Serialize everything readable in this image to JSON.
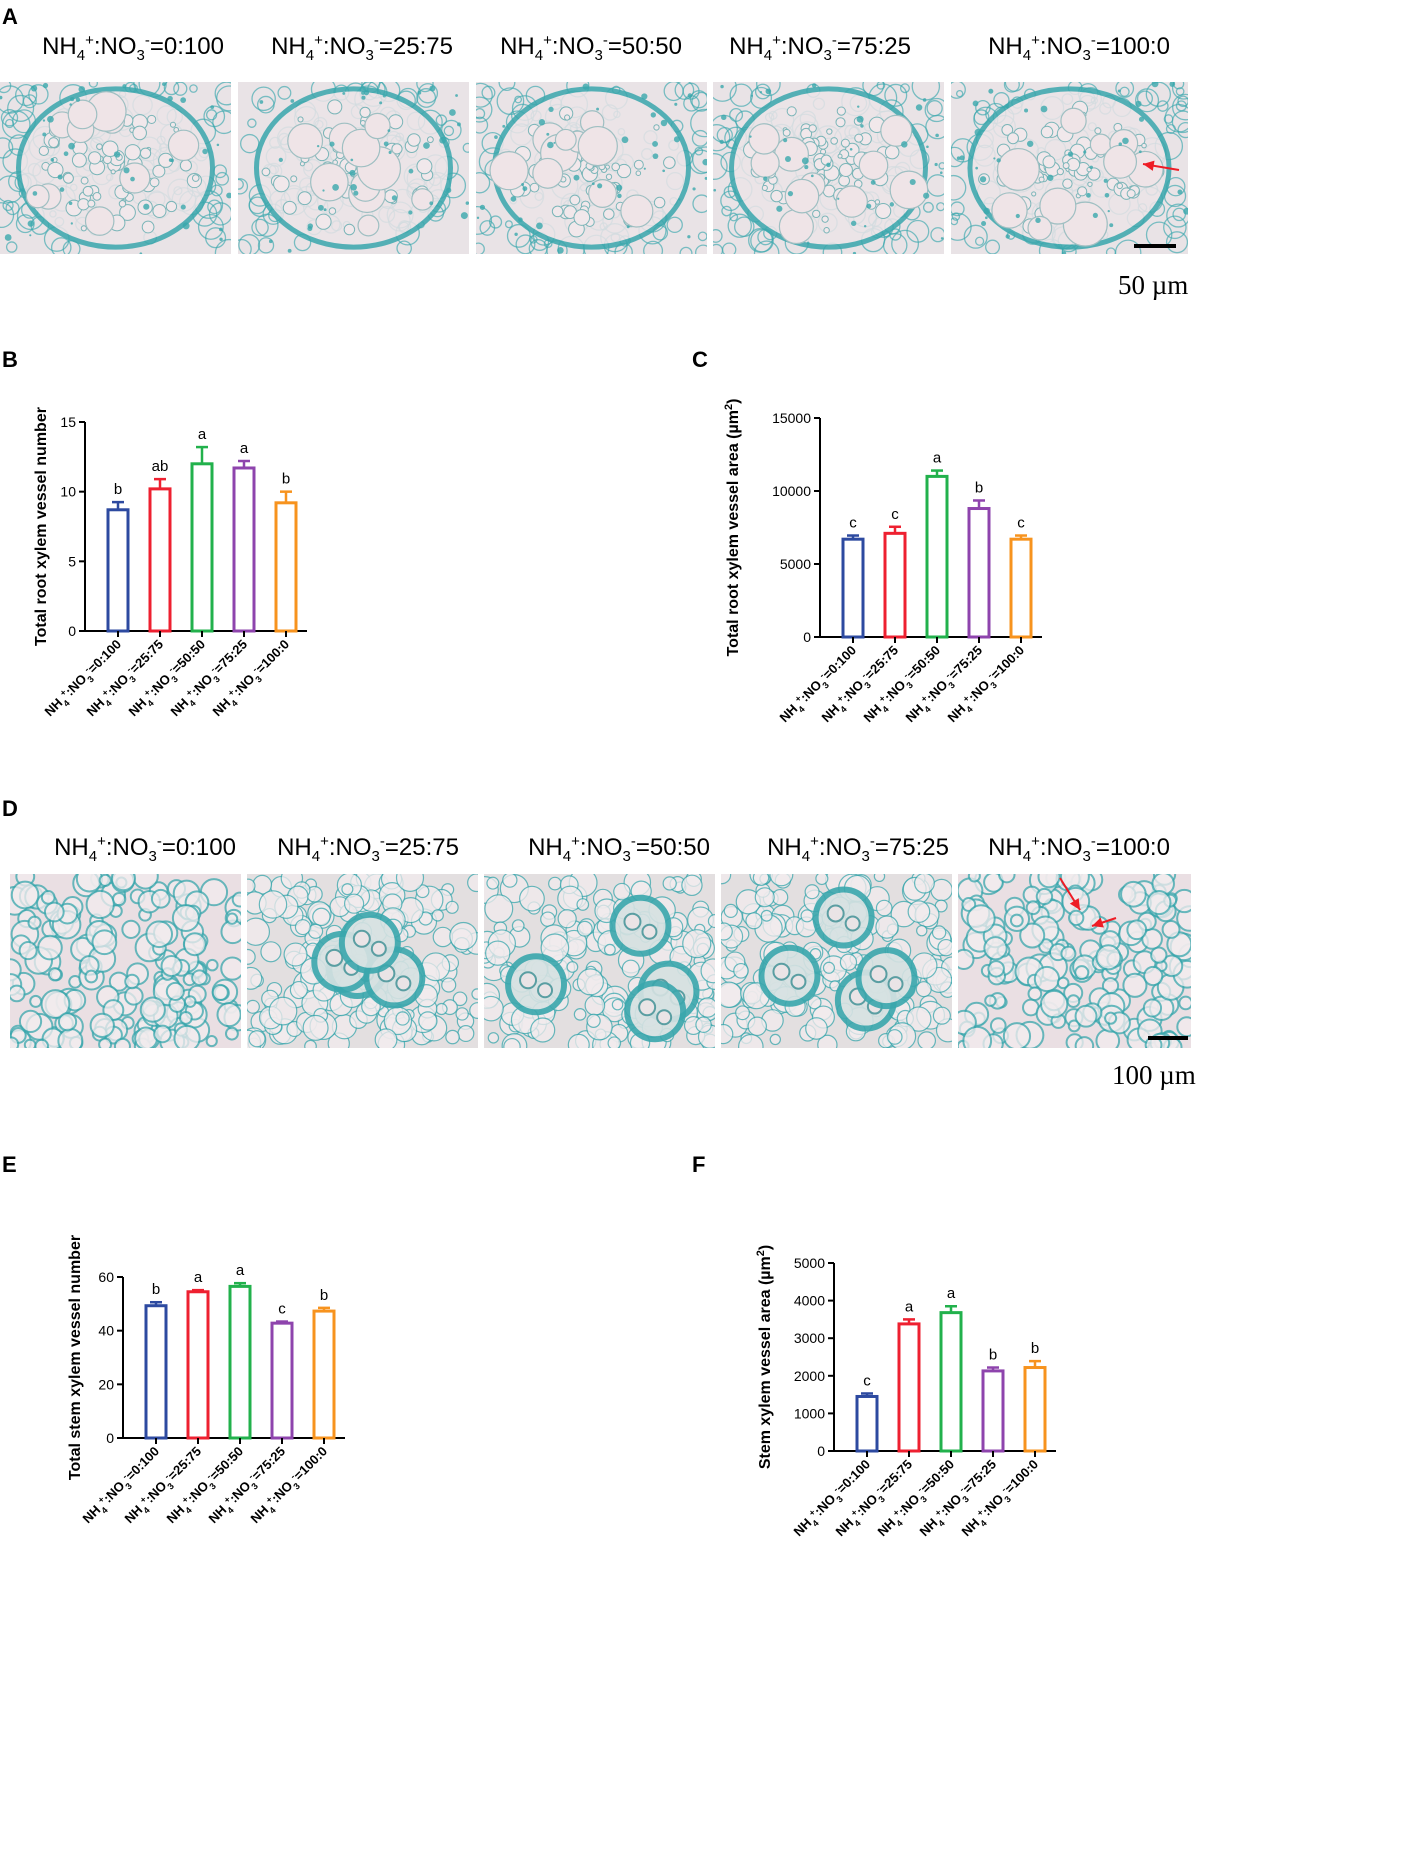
{
  "panel_a": {
    "letter": "A",
    "labels": [
      "0:100",
      "25:75",
      "50:50",
      "75:25",
      "100:0"
    ],
    "scale_text": "50 µm"
  },
  "panel_d": {
    "letter": "D",
    "labels": [
      "0:100",
      "25:75",
      "50:50",
      "75:25",
      "100:0"
    ],
    "scale_text": "100 µm"
  },
  "colors": {
    "stain": "#3aa7ad",
    "tissue": "#e8dfe2",
    "arrow": "#ee1c25",
    "series": [
      "#2d4aa0",
      "#ee2030",
      "#22b14c",
      "#8e44ad",
      "#f7931e"
    ]
  },
  "chart_data": [
    {
      "id": "B",
      "letter": "B",
      "type": "bar",
      "ylabel": "Total root xylem vessel number",
      "unit": "",
      "categories": [
        "0:100",
        "25:75",
        "50:50",
        "75:25",
        "100:0"
      ],
      "values": [
        8.7,
        10.2,
        12.0,
        11.7,
        9.2
      ],
      "errors": [
        0.55,
        0.7,
        1.2,
        0.5,
        0.8
      ],
      "significance": [
        "b",
        "ab",
        "a",
        "a",
        "b"
      ],
      "yticks": [
        0,
        5,
        10,
        15
      ],
      "ylim": [
        0,
        15
      ]
    },
    {
      "id": "C",
      "letter": "C",
      "type": "bar",
      "ylabel": "Total root xylem vessel area (µm",
      "unit": "2",
      "categories": [
        "0:100",
        "25:75",
        "50:50",
        "75:25",
        "100:0"
      ],
      "values": [
        6700,
        7100,
        11000,
        8800,
        6700
      ],
      "errors": [
        250,
        450,
        400,
        550,
        250
      ],
      "significance": [
        "c",
        "c",
        "a",
        "b",
        "c"
      ],
      "yticks": [
        0,
        5000,
        10000,
        15000
      ],
      "ylim": [
        0,
        15000
      ]
    },
    {
      "id": "E",
      "letter": "E",
      "type": "bar",
      "ylabel": "Total stem xylem vessel number",
      "unit": "",
      "categories": [
        "0:100",
        "25:75",
        "50:50",
        "75:25",
        "100:0"
      ],
      "values": [
        49.3,
        54.5,
        56.5,
        42.8,
        47.3
      ],
      "errors": [
        1.3,
        0.6,
        1.2,
        0.6,
        1.2
      ],
      "significance": [
        "b",
        "a",
        "a",
        "c",
        "b"
      ],
      "yticks": [
        0,
        20,
        40,
        60
      ],
      "ylim": [
        0,
        60
      ]
    },
    {
      "id": "F",
      "letter": "F",
      "type": "bar",
      "ylabel": "Stem xylem vessel area (µm",
      "unit": "2",
      "categories": [
        "0:100",
        "25:75",
        "50:50",
        "75:25",
        "100:0"
      ],
      "values": [
        1450,
        3380,
        3680,
        2130,
        2220
      ],
      "errors": [
        80,
        120,
        170,
        90,
        170
      ],
      "significance": [
        "c",
        "a",
        "a",
        "b",
        "b"
      ],
      "yticks": [
        0,
        1000,
        2000,
        3000,
        4000,
        5000
      ],
      "ylim": [
        0,
        5000
      ]
    }
  ]
}
